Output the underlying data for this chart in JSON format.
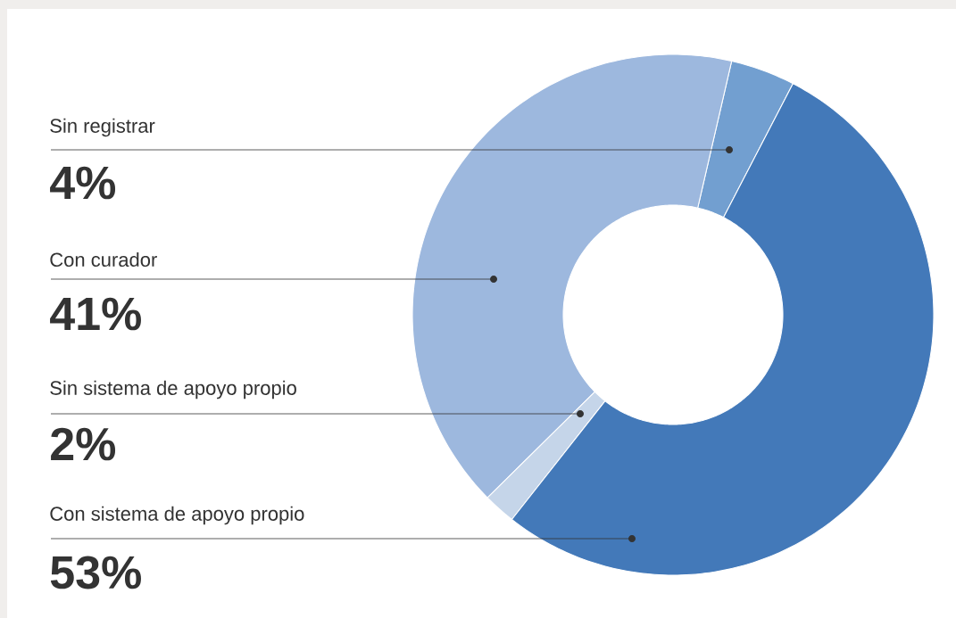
{
  "chart_data": {
    "type": "donut",
    "categories": [
      "Sin registrar",
      "Con curador",
      "Sin sistema de apoyo propio",
      "Con sistema de apoyo propio"
    ],
    "values": [
      4,
      41,
      2,
      53
    ],
    "colors": [
      "#729fd0",
      "#9db8de",
      "#c5d5e9",
      "#4379b9"
    ],
    "value_labels": [
      "4%",
      "41%",
      "2%",
      "53%"
    ]
  }
}
